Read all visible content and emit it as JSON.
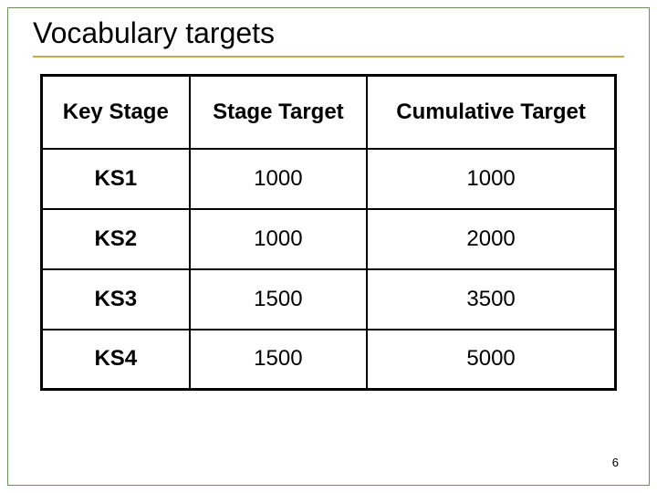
{
  "slide": {
    "title": "Vocabulary targets",
    "page_number": "6",
    "accent_color": "#c9a94a",
    "border_color": "#6b8e5a"
  },
  "table": {
    "columns": [
      "Key Stage",
      "Stage Target",
      "Cumulative Target"
    ],
    "rows": [
      [
        "KS1",
        "1000",
        "1000"
      ],
      [
        "KS2",
        "1000",
        "2000"
      ],
      [
        "KS3",
        "1500",
        "3500"
      ],
      [
        "KS4",
        "1500",
        "5000"
      ]
    ]
  }
}
